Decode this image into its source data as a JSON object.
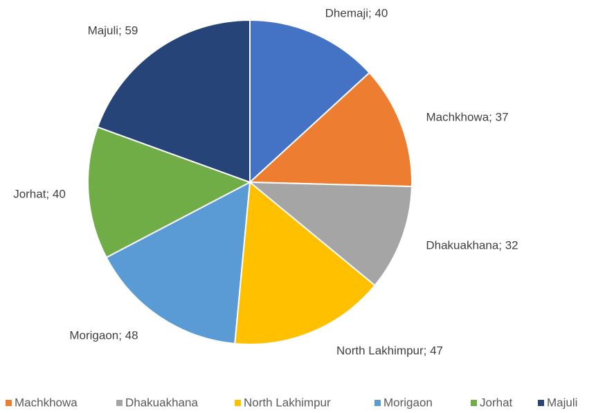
{
  "chart_data": {
    "type": "pie",
    "categories": [
      "Dhemaji",
      "Machkhowa",
      "Dhakuakhana",
      "North Lakhimpur",
      "Morigaon",
      "Jorhat",
      "Majuli"
    ],
    "values": [
      40,
      37,
      32,
      47,
      48,
      40,
      59
    ],
    "value_labels": [
      "Dhemaji; 40",
      "Machkhowa; 37",
      "Dhakuakhana; 32",
      "North Lakhimpur; 47",
      "Morigaon; 48",
      "Jorhat; 40",
      "Majuli; 59"
    ],
    "colors": [
      "#4472c4",
      "#ed7d31",
      "#a5a5a5",
      "#ffc000",
      "#5b9bd5",
      "#70ad47",
      "#264478"
    ]
  }
}
